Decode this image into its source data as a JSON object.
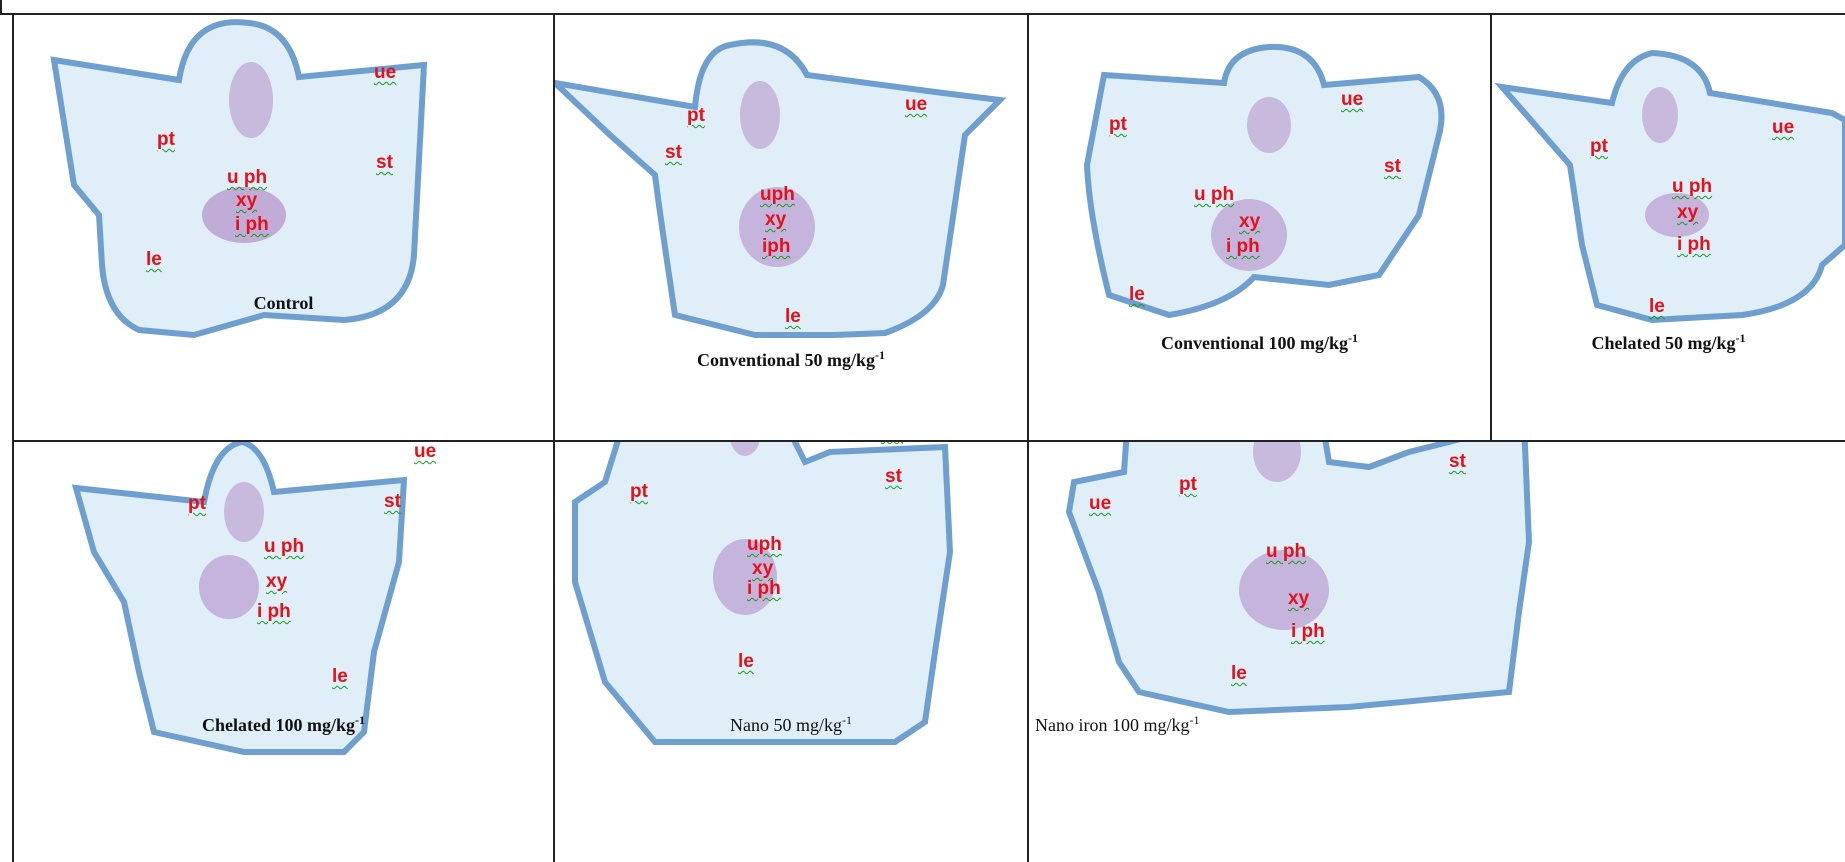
{
  "panels": [
    {
      "id": "control",
      "caption": "Control",
      "caption_sup": "",
      "caption_bold": true,
      "labels": {
        "ue": "ue",
        "pt": "pt",
        "st": "st",
        "uph": "u ph",
        "xy": "xy",
        "iph": "i ph",
        "le": "le"
      }
    },
    {
      "id": "conv50",
      "caption": "Conventional 50 mg/kg",
      "caption_sup": "-1",
      "caption_bold": true,
      "labels": {
        "pt": "pt",
        "ue": "ue",
        "st": "st",
        "uph": "uph",
        "xy": "xy",
        "iph": "iph",
        "le": "le"
      }
    },
    {
      "id": "conv100",
      "caption": "Conventional 100 mg/kg",
      "caption_sup": "-1",
      "caption_bold": true,
      "labels": {
        "ue": "ue",
        "pt": "pt",
        "st": "st",
        "uph": "u ph",
        "xy": "xy",
        "iph": "i ph",
        "le": "le"
      }
    },
    {
      "id": "chel50",
      "caption": "Chelated 50 mg/kg",
      "caption_sup": "-1",
      "caption_bold": true,
      "labels": {
        "pt": "pt",
        "ue": "ue",
        "uph": "u ph",
        "xy": "xy",
        "iph": "i ph",
        "le": "le"
      }
    },
    {
      "id": "chel100",
      "caption": "Chelated 100 mg/kg",
      "caption_sup": "-1",
      "caption_bold": true,
      "labels": {
        "ue": "ue",
        "pt": "pt",
        "st": "st",
        "uph": "u ph",
        "xy": "xy",
        "iph": "i ph",
        "le": "le"
      }
    },
    {
      "id": "nano50",
      "caption": "Nano 50 mg/kg",
      "caption_sup": "-1",
      "caption_bold": false,
      "labels": {
        "ue": "ue",
        "pt": "pt",
        "st": "st",
        "uph": "uph",
        "xy": "xy",
        "iph": "i ph",
        "le": "le"
      }
    },
    {
      "id": "nano100",
      "caption": "Nano iron 100 mg/kg",
      "caption_sup": "-1",
      "caption_bold": false,
      "labels": {
        "st": "st",
        "pt": "pt",
        "ue": "ue",
        "uph": "u ph",
        "xy": "xy",
        "iph": "i ph",
        "le": "le"
      }
    }
  ],
  "colors": {
    "tissue_fill": "#dfeef7",
    "tissue_edge": "#6f9fcf",
    "cell_wall": "#8fc0dc",
    "vascular": "#b48fc9",
    "label_text": "#e4101a",
    "label_underline": "#1a9a1a",
    "grid_line": "#222222"
  }
}
